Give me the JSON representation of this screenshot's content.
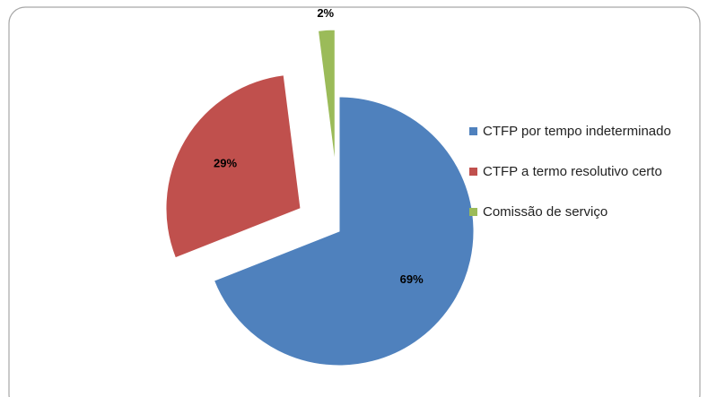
{
  "chart_data": {
    "type": "pie",
    "categories": [
      "CTFP por tempo indeterminado",
      "CTFP a termo resolutivo certo",
      "Comissão de serviço"
    ],
    "values": [
      69,
      29,
      2
    ],
    "value_labels": [
      "69%",
      "29%",
      "2%"
    ],
    "colors": [
      "#4f81bd",
      "#c0504d",
      "#9bbb59"
    ],
    "legend": "right"
  }
}
